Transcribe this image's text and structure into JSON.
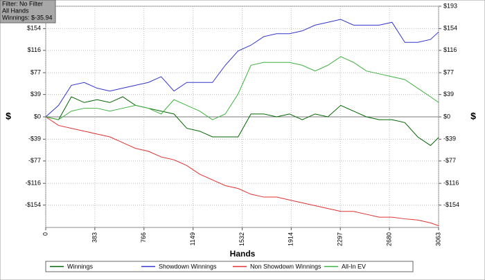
{
  "chart_data": {
    "type": "line",
    "info": [
      "Filter: No Filter",
      "All Hands",
      "Winnings: $-35.94"
    ],
    "xlabel": "Hands",
    "ylabel": "$",
    "x": [
      0,
      100,
      200,
      300,
      400,
      500,
      600,
      700,
      800,
      900,
      1000,
      1100,
      1200,
      1300,
      1400,
      1500,
      1600,
      1700,
      1800,
      1900,
      2000,
      2100,
      2200,
      2300,
      2400,
      2500,
      2600,
      2700,
      2800,
      2900,
      3000,
      3063
    ],
    "series": [
      {
        "name": "Winnings",
        "color": "#006400",
        "values": [
          0,
          -5,
          35,
          25,
          30,
          25,
          35,
          20,
          15,
          10,
          5,
          -20,
          -25,
          -35,
          -35,
          -35,
          5,
          5,
          0,
          5,
          -5,
          5,
          0,
          20,
          10,
          0,
          -5,
          -5,
          -10,
          -35,
          -50,
          -36
        ]
      },
      {
        "name": "Showdown Winnings",
        "color": "#3333cc",
        "values": [
          0,
          20,
          55,
          60,
          50,
          45,
          50,
          55,
          60,
          70,
          45,
          60,
          60,
          60,
          90,
          115,
          125,
          140,
          145,
          145,
          150,
          160,
          165,
          170,
          160,
          160,
          160,
          165,
          130,
          130,
          135,
          148
        ]
      },
      {
        "name": "Non Showdown Winnings",
        "color": "#e03030",
        "values": [
          0,
          -15,
          -20,
          -25,
          -30,
          -35,
          -45,
          -55,
          -60,
          -70,
          -75,
          -85,
          -100,
          -110,
          -120,
          -125,
          -135,
          -140,
          -140,
          -145,
          -150,
          -155,
          -160,
          -165,
          -165,
          -170,
          -175,
          -175,
          -178,
          -180,
          -185,
          -190
        ]
      },
      {
        "name": "All-In EV",
        "color": "#40b040",
        "values": [
          0,
          -5,
          10,
          15,
          15,
          10,
          15,
          20,
          15,
          5,
          30,
          20,
          10,
          -5,
          5,
          40,
          90,
          95,
          95,
          95,
          90,
          80,
          90,
          105,
          95,
          80,
          75,
          70,
          65,
          50,
          35,
          25
        ]
      }
    ],
    "xlim": [
      0,
      3063
    ],
    "xticks": [
      0,
      383,
      766,
      1149,
      1532,
      1914,
      2297,
      2680,
      3063
    ],
    "ylim": [
      -193,
      193
    ],
    "yticks": [
      {
        "value": 193,
        "label": "$193"
      },
      {
        "value": 154,
        "label": "$154"
      },
      {
        "value": 116,
        "label": "$116"
      },
      {
        "value": 77,
        "label": "$77"
      },
      {
        "value": 39,
        "label": "$39"
      },
      {
        "value": 0,
        "label": "$0"
      },
      {
        "value": -39,
        "label": "-$39"
      },
      {
        "value": -77,
        "label": "-$77"
      },
      {
        "value": -116,
        "label": "-$116"
      },
      {
        "value": -154,
        "label": "-$154"
      }
    ],
    "grid": true
  }
}
